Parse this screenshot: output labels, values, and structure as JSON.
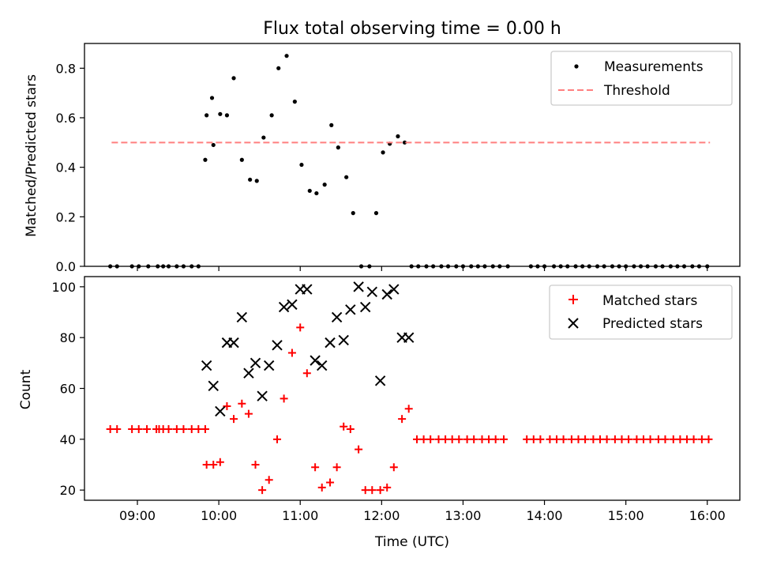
{
  "figure": {
    "title": "Flux total observing time = 0.00 h",
    "xlabel": "Time (UTC)"
  },
  "colors": {
    "measurement": "#000000",
    "threshold": "#ff7f7f",
    "matched": "#ff0000",
    "predicted": "#000000"
  },
  "chart_data": [
    {
      "type": "scatter",
      "ylabel": "Matched/Predicted stars",
      "xlim": [
        "08:21",
        "16:24"
      ],
      "ylim": [
        0,
        0.9
      ],
      "xticks": [],
      "yticks": [
        0.0,
        0.2,
        0.4,
        0.6,
        0.8
      ],
      "grid": false,
      "legend_position": "top-right",
      "series": [
        {
          "name": "Measurements",
          "marker": "dot",
          "x": [
            "08:40",
            "08:45",
            "08:56",
            "09:01",
            "09:08",
            "09:15",
            "09:19",
            "09:23",
            "09:29",
            "09:34",
            "09:40",
            "09:45",
            "09:50",
            "09:56",
            "09:51",
            "09:55",
            "10:01",
            "10:06",
            "10:11",
            "10:17",
            "10:23",
            "10:28",
            "10:33",
            "10:39",
            "10:44",
            "10:50",
            "10:56",
            "11:01",
            "11:07",
            "11:12",
            "11:18",
            "11:23",
            "11:28",
            "11:34",
            "11:39",
            "11:45",
            "11:51",
            "11:56",
            "12:01",
            "12:06",
            "12:12",
            "12:17",
            "12:22",
            "12:27",
            "12:33",
            "12:38",
            "12:44",
            "12:49",
            "12:55",
            "13:00",
            "13:06",
            "13:11",
            "13:16",
            "13:22",
            "13:27",
            "13:33",
            "13:50",
            "13:55",
            "14:00",
            "14:07",
            "14:12",
            "14:17",
            "14:23",
            "14:28",
            "14:33",
            "14:39",
            "14:44",
            "14:50",
            "14:55",
            "15:00",
            "15:06",
            "15:11",
            "15:16",
            "15:22",
            "15:27",
            "15:33",
            "15:38",
            "15:43",
            "15:49",
            "15:54",
            "16:00"
          ],
          "y": [
            0,
            0,
            0,
            0,
            0,
            0,
            0,
            0,
            0,
            0,
            0,
            0,
            0.43,
            0.49,
            0.61,
            0.68,
            0.615,
            0.61,
            0.76,
            0.43,
            0.35,
            0.345,
            0.52,
            0.61,
            0.8,
            0.85,
            0.665,
            0.41,
            0.305,
            0.295,
            0.33,
            0.57,
            0.48,
            0.36,
            0.215,
            0,
            0,
            0.215,
            0.46,
            0.495,
            0.525,
            0.5,
            0,
            0,
            0,
            0,
            0,
            0,
            0,
            0,
            0,
            0,
            0,
            0,
            0,
            0,
            0,
            0,
            0,
            0,
            0,
            0,
            0,
            0,
            0,
            0,
            0,
            0,
            0,
            0,
            0,
            0,
            0,
            0,
            0,
            0,
            0,
            0,
            0,
            0,
            0
          ]
        },
        {
          "name": "Threshold",
          "style": "dashed",
          "x": [
            "08:41",
            "16:02"
          ],
          "y": [
            0.5,
            0.5
          ]
        }
      ]
    },
    {
      "type": "scatter",
      "ylabel": "Count",
      "xlim": [
        "08:21",
        "16:24"
      ],
      "ylim": [
        16,
        104
      ],
      "xticks": [
        "09:00",
        "10:00",
        "11:00",
        "12:00",
        "13:00",
        "14:00",
        "15:00",
        "16:00"
      ],
      "yticks": [
        20,
        40,
        60,
        80,
        100
      ],
      "grid": false,
      "legend_position": "top-right",
      "series": [
        {
          "name": "Matched stars",
          "marker": "plus",
          "x": [
            "08:40",
            "08:45",
            "08:56",
            "09:01",
            "09:07",
            "09:14",
            "09:16",
            "09:19",
            "09:23",
            "09:29",
            "09:34",
            "09:40",
            "09:45",
            "09:50",
            "09:51",
            "09:56",
            "10:01",
            "10:06",
            "10:11",
            "10:17",
            "10:22",
            "10:27",
            "10:32",
            "10:37",
            "10:43",
            "10:48",
            "10:54",
            "11:00",
            "11:05",
            "11:11",
            "11:16",
            "11:22",
            "11:27",
            "11:32",
            "11:37",
            "11:43",
            "11:48",
            "11:53",
            "11:59",
            "12:04",
            "12:09",
            "12:15",
            "12:20",
            "12:26",
            "12:31",
            "12:36",
            "12:42",
            "12:47",
            "12:52",
            "12:57",
            "13:03",
            "13:08",
            "13:14",
            "13:19",
            "13:24",
            "13:30",
            "13:47",
            "13:52",
            "13:57",
            "14:04",
            "14:09",
            "14:14",
            "14:20",
            "14:25",
            "14:30",
            "14:36",
            "14:41",
            "14:46",
            "14:52",
            "14:57",
            "15:02",
            "15:08",
            "15:13",
            "15:18",
            "15:24",
            "15:29",
            "15:35",
            "15:40",
            "15:45",
            "15:50",
            "15:56",
            "16:01"
          ],
          "y": [
            44,
            44,
            44,
            44,
            44,
            44,
            44,
            44,
            44,
            44,
            44,
            44,
            44,
            44,
            30,
            30,
            31,
            53,
            48,
            54,
            50,
            30,
            20,
            24,
            40,
            56,
            74,
            84,
            66,
            29,
            21,
            23,
            29,
            45,
            44,
            36,
            20,
            20,
            20,
            21,
            29,
            48,
            52,
            40,
            40,
            40,
            40,
            40,
            40,
            40,
            40,
            40,
            40,
            40,
            40,
            40,
            40,
            40,
            40,
            40,
            40,
            40,
            40,
            40,
            40,
            40,
            40,
            40,
            40,
            40,
            40,
            40,
            40,
            40,
            40,
            40,
            40,
            40,
            40,
            40,
            40,
            40
          ]
        },
        {
          "name": "Predicted stars",
          "marker": "x",
          "x": [
            "09:51",
            "09:56",
            "10:01",
            "10:06",
            "10:11",
            "10:17",
            "10:22",
            "10:27",
            "10:32",
            "10:37",
            "10:43",
            "10:48",
            "10:54",
            "11:00",
            "11:05",
            "11:11",
            "11:16",
            "11:22",
            "11:27",
            "11:32",
            "11:37",
            "11:43",
            "11:48",
            "11:53",
            "11:59",
            "12:04",
            "12:09",
            "12:15",
            "12:20"
          ],
          "y": [
            69,
            61,
            51,
            78,
            78,
            88,
            66,
            70,
            57,
            69,
            77,
            92,
            93,
            99,
            99,
            71,
            69,
            78,
            88,
            79,
            91,
            100,
            92,
            98,
            63,
            97,
            99,
            80,
            80
          ]
        }
      ]
    }
  ]
}
